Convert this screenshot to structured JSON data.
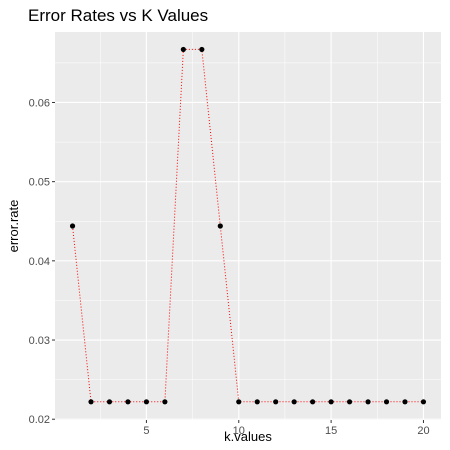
{
  "chart_data": {
    "type": "line",
    "title": "Error Rates vs K Values",
    "xlabel": "k.values",
    "ylabel": "error.rate",
    "xlim": [
      0.05,
      20.95
    ],
    "ylim": [
      0.0199,
      0.0689
    ],
    "x_ticks": [
      5,
      10,
      15,
      20
    ],
    "x_tick_labels": [
      "5",
      "10",
      "15",
      "20"
    ],
    "y_ticks": [
      0.02,
      0.03,
      0.04,
      0.05,
      0.06
    ],
    "y_tick_labels": [
      "0.02",
      "0.03",
      "0.04",
      "0.05",
      "0.06"
    ],
    "grid": true,
    "series": [
      {
        "x": [
          1,
          2,
          3,
          4,
          5,
          6,
          7,
          8,
          9,
          10,
          11,
          12,
          13,
          14,
          15,
          16,
          17,
          18,
          19,
          20
        ],
        "values": [
          0.0444,
          0.0222,
          0.0222,
          0.0222,
          0.0222,
          0.0222,
          0.0667,
          0.0667,
          0.0444,
          0.0222,
          0.0222,
          0.0222,
          0.0222,
          0.0222,
          0.0222,
          0.0222,
          0.0222,
          0.0222,
          0.0222,
          0.0222
        ],
        "line_color": "#ff0000",
        "point_color": "#000000"
      }
    ],
    "panel_background": "#ebebeb",
    "grid_color": "#ffffff"
  }
}
